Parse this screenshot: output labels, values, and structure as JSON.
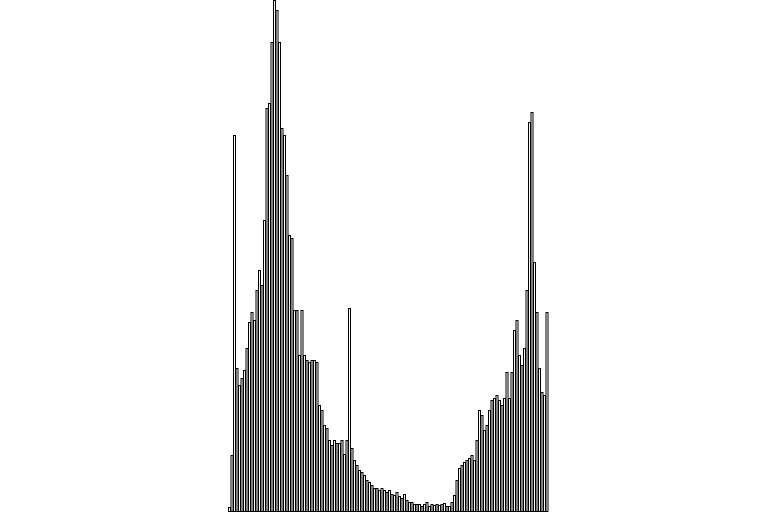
{
  "chart_data": {
    "type": "histogram",
    "bins": [
      0,
      1,
      2,
      3,
      4,
      5,
      6,
      7,
      8,
      9,
      10,
      11,
      12,
      13,
      14,
      15,
      16,
      17,
      18,
      19,
      20,
      21,
      22,
      23,
      24,
      25,
      26,
      27,
      28,
      29,
      30,
      31,
      32,
      33,
      34,
      35,
      36,
      37,
      38,
      39,
      40,
      41,
      42,
      43,
      44,
      45,
      46,
      47,
      48,
      49,
      50,
      51,
      52,
      53,
      54,
      55,
      56,
      57,
      58,
      59,
      60,
      61,
      62,
      63,
      64,
      65,
      66,
      67,
      68,
      69,
      70,
      71,
      72,
      73,
      74,
      75,
      76,
      77,
      78,
      79,
      80,
      81,
      82,
      83,
      84,
      85,
      86,
      87,
      88,
      89,
      90,
      91,
      92,
      93,
      94,
      95,
      96,
      97,
      98,
      99,
      100,
      101,
      102,
      103,
      104,
      105,
      106,
      107,
      108,
      109,
      110,
      111,
      112,
      113,
      114,
      115,
      116,
      117,
      118,
      119,
      120,
      121,
      122,
      123,
      124,
      125,
      126,
      127,
      128
    ],
    "values": [
      5,
      57,
      377,
      144,
      127,
      134,
      142,
      164,
      190,
      200,
      192,
      222,
      242,
      227,
      292,
      404,
      409,
      470,
      512,
      502,
      470,
      384,
      377,
      337,
      277,
      274,
      202,
      202,
      157,
      202,
      157,
      152,
      150,
      152,
      152,
      150,
      107,
      102,
      87,
      84,
      72,
      67,
      72,
      69,
      69,
      72,
      58,
      72,
      204,
      64,
      52,
      47,
      42,
      40,
      37,
      32,
      30,
      27,
      24,
      24,
      22,
      24,
      22,
      20,
      22,
      18,
      17,
      20,
      16,
      14,
      18,
      12,
      10,
      10,
      8,
      8,
      8,
      6,
      8,
      10,
      6,
      8,
      7,
      8,
      7,
      8,
      9,
      6,
      6,
      10,
      17,
      32,
      44,
      47,
      50,
      52,
      54,
      57,
      52,
      72,
      102,
      97,
      82,
      87,
      102,
      112,
      114,
      117,
      112,
      107,
      114,
      140,
      114,
      140,
      182,
      192,
      157,
      147,
      164,
      222,
      390,
      400,
      250,
      200,
      144,
      120,
      117,
      200
    ],
    "color": "#ffffff",
    "edgecolor": "#000000",
    "xlim": [
      0,
      128
    ],
    "ylim": [
      0,
      512
    ]
  }
}
